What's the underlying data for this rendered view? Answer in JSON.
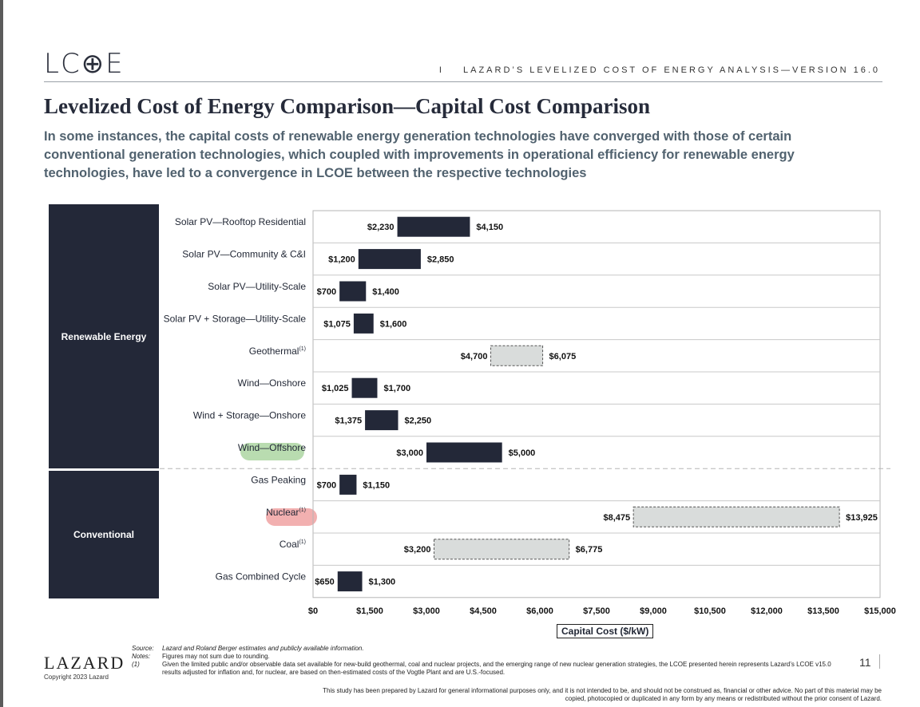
{
  "header": {
    "logo_text": "LC⊕E",
    "report_separator": "I",
    "report_title": "LAZARD’S LEVELIZED COST OF ENERGY ANALYSIS—VERSION 16.0"
  },
  "page_title": "Levelized Cost of Energy Comparison—Capital Cost Comparison",
  "subtitle": "In some instances, the capital costs of renewable energy generation technologies have converged with those of certain conventional generation technologies, which coupled with improvements in operational efficiency for renewable energy technologies, have led to a convergence in LCOE between the respective technologies",
  "categories": {
    "renewable": "Renewable Energy",
    "conventional": "Conventional"
  },
  "chart_data": {
    "type": "bar",
    "orientation": "horizontal-range",
    "xlabel": "Capital Cost ($/kW)",
    "xlim": [
      0,
      15000
    ],
    "ticks": [
      "$0",
      "$1,500",
      "$3,000",
      "$4,500",
      "$6,000",
      "$7,500",
      "$9,000",
      "$10,500",
      "$12,000",
      "$13,500",
      "$15,000"
    ],
    "tick_values": [
      0,
      1500,
      3000,
      4500,
      6000,
      7500,
      9000,
      10500,
      12000,
      13500,
      15000
    ],
    "colors": {
      "solid": "#232838",
      "dashed_fill": "#d9dcdb",
      "dashed_border": "#555555"
    },
    "rows": [
      {
        "label": "Solar PV—Rooftop Residential",
        "sup": "",
        "low": 2230,
        "high": 4150,
        "low_label": "$2,230",
        "high_label": "$4,150",
        "style": "solid",
        "group": "Renewable Energy"
      },
      {
        "label": "Solar PV—Community & C&I",
        "sup": "",
        "low": 1200,
        "high": 2850,
        "low_label": "$1,200",
        "high_label": "$2,850",
        "style": "solid",
        "group": "Renewable Energy"
      },
      {
        "label": "Solar PV—Utility-Scale",
        "sup": "",
        "low": 700,
        "high": 1400,
        "low_label": "$700",
        "high_label": "$1,400",
        "style": "solid",
        "group": "Renewable Energy"
      },
      {
        "label": "Solar PV + Storage—Utility-Scale",
        "sup": "",
        "low": 1075,
        "high": 1600,
        "low_label": "$1,075",
        "high_label": "$1,600",
        "style": "solid",
        "group": "Renewable Energy"
      },
      {
        "label": "Geothermal",
        "sup": "(1)",
        "low": 4700,
        "high": 6075,
        "low_label": "$4,700",
        "high_label": "$6,075",
        "style": "dashed",
        "group": "Renewable Energy"
      },
      {
        "label": "Wind—Onshore",
        "sup": "",
        "low": 1025,
        "high": 1700,
        "low_label": "$1,025",
        "high_label": "$1,700",
        "style": "solid",
        "group": "Renewable Energy"
      },
      {
        "label": "Wind + Storage—Onshore",
        "sup": "",
        "low": 1375,
        "high": 2250,
        "low_label": "$1,375",
        "high_label": "$2,250",
        "style": "solid",
        "group": "Renewable Energy"
      },
      {
        "label": "Wind—Offshore",
        "sup": "",
        "low": 3000,
        "high": 5000,
        "low_label": "$3,000",
        "high_label": "$5,000",
        "style": "solid",
        "group": "Renewable Energy"
      },
      {
        "label": "Gas Peaking",
        "sup": "",
        "low": 700,
        "high": 1150,
        "low_label": "$700",
        "high_label": "$1,150",
        "style": "solid",
        "group": "Conventional"
      },
      {
        "label": "Nuclear",
        "sup": "(1)",
        "low": 8475,
        "high": 13925,
        "low_label": "$8,475",
        "high_label": "$13,925",
        "style": "dashed",
        "group": "Conventional"
      },
      {
        "label": "Coal",
        "sup": "(1)",
        "low": 3200,
        "high": 6775,
        "low_label": "$3,200",
        "high_label": "$6,775",
        "style": "dashed",
        "group": "Conventional"
      },
      {
        "label": "Gas Combined Cycle",
        "sup": "",
        "low": 650,
        "high": 1300,
        "low_label": "$650",
        "high_label": "$1,300",
        "style": "solid",
        "group": "Conventional"
      }
    ]
  },
  "footer": {
    "logo": "LAZARD",
    "copyright": "Copyright 2023 Lazard",
    "source_label": "Source:",
    "source_text": "Lazard and Roland Berger estimates and publicly available information.",
    "notes_label": "Notes:",
    "notes_text": "Figures may not sum due to rounding.",
    "note1_label": "(1)",
    "note1_text": "Given the limited public and/or observable data set available for new-build geothermal, coal and nuclear projects, and the emerging range of new nuclear generation strategies, the LCOE presented herein represents Lazard’s LCOE v15.0 results adjusted for inflation and, for nuclear, are based on then-estimated costs of the Vogtle Plant and are U.S.-focused.",
    "page_number": "11",
    "disclaimer": "This study has been prepared by Lazard for general informational purposes only, and it is not intended to be, and should not be construed as, financial or other advice. No part of this material may be copied, photocopied or duplicated in any form by any means or redistributed without the prior consent of Lazard."
  }
}
